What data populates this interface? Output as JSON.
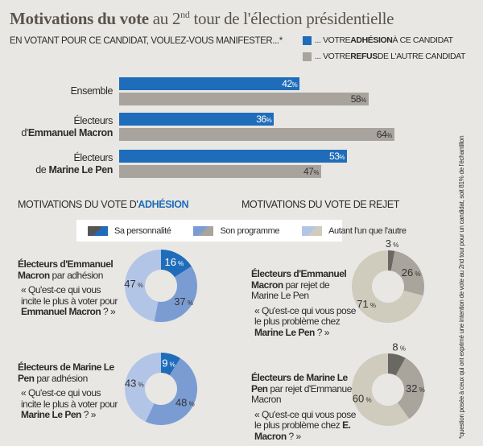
{
  "title": {
    "bold": "Motivations du vote",
    "rest_before": " au 2",
    "sup": "nd",
    "rest_after": " tour de l'élection  présidentielle"
  },
  "question": "EN VOTANT POUR CE CANDIDAT, VOULEZ-VOUS MANIFESTER...*",
  "legend": [
    {
      "pre": "... VOTRE ",
      "bold": "ADHÉSION",
      "post": " À CE CANDIDAT",
      "color": "#1f6dba"
    },
    {
      "pre": "... VOTRE ",
      "bold": "REFUS",
      "post": " DE L'AUTRE CANDIDAT",
      "color": "#a8a39c"
    }
  ],
  "footnote": "*question posée à ceux qui ont exprimé une intention de vote au 2nd tour pour un candidat, soit 81% de l'échantillon",
  "chart_data": [
    {
      "type": "bar",
      "orientation": "horizontal",
      "categories": [
        {
          "line1": "Ensemble",
          "line2_pre": "",
          "line2_bold": ""
        },
        {
          "line1": "Électeurs",
          "line2_pre": "d'",
          "line2_bold": "Emmanuel Macron"
        },
        {
          "line1": "Électeurs",
          "line2_pre": "de ",
          "line2_bold": "Marine Le Pen"
        }
      ],
      "series": [
        {
          "name": "... VOTRE ADHÉSION À CE CANDIDAT",
          "values": [
            42,
            36,
            53
          ],
          "color": "#1f6dba"
        },
        {
          "name": "... VOTRE REFUS DE L'AUTRE CANDIDAT",
          "values": [
            58,
            64,
            47
          ],
          "color": "#a8a39c"
        }
      ],
      "unit": "%",
      "xlim": [
        0,
        100
      ]
    },
    {
      "type": "pie",
      "section": "adhesion",
      "legend": [
        "Sa personnalité",
        "Son programme",
        "Autant l'un que l'autre"
      ],
      "colors": [
        "#1f6dba",
        "#7b9cd3",
        "#b3c5e7"
      ],
      "charts": [
        {
          "title_bold": "Électeurs d'Emmanuel Macron",
          "title_rest": " par adhésion",
          "question_pre": "« Qu'est-ce qui vous incite le plus à voter pour ",
          "question_bold": "Emmanuel Macron",
          "question_post": " ? »",
          "values": [
            16,
            37,
            47
          ]
        },
        {
          "title_bold": "Électeurs de Marine Le Pen",
          "title_rest": " par adhésion",
          "question_pre": "« Qu'est-ce qui vous incite le plus à voter pour ",
          "question_bold": "Marine Le Pen",
          "question_post": " ? »",
          "values": [
            9,
            48,
            43
          ]
        }
      ]
    },
    {
      "type": "pie",
      "section": "rejet",
      "colors": [
        "#6a6863",
        "#a9a49c",
        "#cfcbbd"
      ],
      "charts": [
        {
          "title_bold": "Électeurs d'Emmanuel Macron",
          "title_rest": " par rejet de Marine Le Pen",
          "question_pre": "« Qu'est-ce qui vous pose le plus problème chez ",
          "question_bold": "Marine Le Pen",
          "question_post": " ? »",
          "values": [
            3,
            26,
            71
          ]
        },
        {
          "title_bold": "Électeurs de Marine Le Pen",
          "title_rest": " par rejet d'Emmanuel Macron",
          "question_pre": "« Qu'est-ce qui vous pose le plus problème chez ",
          "question_bold": "E. Macron",
          "question_post": " ? »",
          "values": [
            8,
            32,
            60
          ]
        }
      ]
    }
  ],
  "sections": {
    "adhesion": {
      "pre": "MOTIVATIONS DU VOTE D'",
      "bold": "ADHÉSION",
      "accent": "#1f6dba"
    },
    "rejet": {
      "text": "MOTIVATIONS DU VOTE DE REJET"
    }
  }
}
